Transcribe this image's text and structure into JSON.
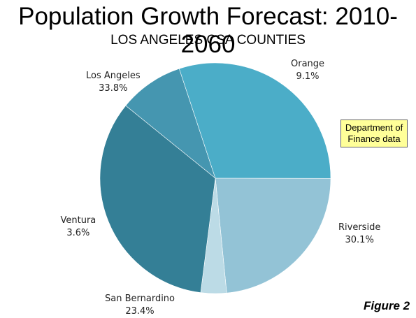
{
  "chart_data": {
    "type": "pie",
    "title": "Population Growth Forecast: 2010-2060",
    "subtitle": "LOS ANGELES CSA COUNTIES",
    "slices": [
      {
        "label": "Orange",
        "value": 9.1,
        "display": "9.1%",
        "color": "#4596b0"
      },
      {
        "label": "Riverside",
        "value": 30.1,
        "display": "30.1%",
        "color": "#4badc8"
      },
      {
        "label": "San Bernardino",
        "value": 23.4,
        "display": "23.4%",
        "color": "#93c3d6"
      },
      {
        "label": "Ventura",
        "value": 3.6,
        "display": "3.6%",
        "color": "#bcdbe6"
      },
      {
        "label": "Los Angeles",
        "value": 33.8,
        "display": "33.8%",
        "color": "#347f96"
      }
    ],
    "annotation": "Department of Finance data",
    "annotation_lines": [
      "Department of",
      "Finance data"
    ],
    "figure_label": "Figure 2"
  }
}
